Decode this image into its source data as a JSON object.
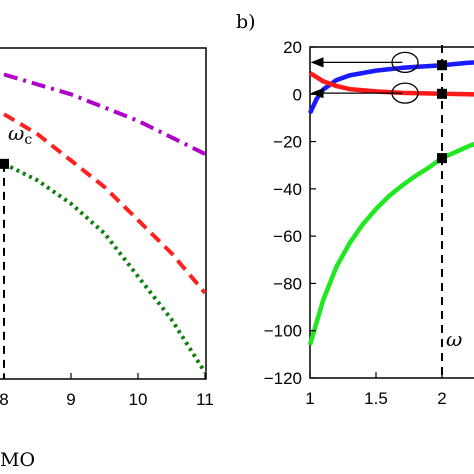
{
  "chart_data": [
    {
      "type": "line",
      "panel_label": "",
      "xlabel": "",
      "xlabel_fragment": "MO",
      "ylabel": "",
      "xlim": [
        8,
        11
      ],
      "x_ticks": [
        8,
        9,
        10,
        11
      ],
      "grid": false,
      "series": [
        {
          "color": "#b000c8",
          "style": "dash-dot",
          "x": [
            8,
            9,
            10,
            11
          ],
          "y": [
            0.92,
            0.86,
            0.78,
            0.68
          ]
        },
        {
          "color": "#ff2020",
          "style": "dashed",
          "x": [
            8,
            8.5,
            9,
            9.5,
            10,
            10.5,
            11
          ],
          "y": [
            0.8,
            0.74,
            0.66,
            0.58,
            0.48,
            0.38,
            0.26
          ]
        },
        {
          "color": "#108010",
          "style": "dotted",
          "x": [
            8,
            8.5,
            9,
            9.5,
            10,
            10.5,
            11
          ],
          "y": [
            0.65,
            0.6,
            0.53,
            0.44,
            0.31,
            0.18,
            0.02
          ]
        }
      ],
      "marker": {
        "x": 8,
        "y": 0.65,
        "label_main": "ω",
        "label_sub": "c"
      }
    },
    {
      "type": "line",
      "panel_label": "b)",
      "xlabel": "",
      "ylabel": "",
      "xlim": [
        1,
        2.4
      ],
      "ylim": [
        -120,
        20
      ],
      "x_ticks": [
        1,
        1.5,
        2
      ],
      "x_tick_labels": [
        "1",
        "1.5",
        "2"
      ],
      "y_ticks": [
        20,
        0,
        -20,
        -40,
        -60,
        -80,
        -100,
        -120
      ],
      "y_tick_labels": [
        "20",
        "0",
        "−20",
        "−40",
        "−60",
        "−80",
        "−100",
        "−120"
      ],
      "grid": false,
      "series": [
        {
          "color": "#1a1aff",
          "x": [
            1,
            1.05,
            1.1,
            1.2,
            1.3,
            1.5,
            1.7,
            2,
            2.2,
            2.4
          ],
          "y": [
            -8,
            -2,
            2,
            6,
            8,
            10,
            11.2,
            12.3,
            13.3,
            14
          ]
        },
        {
          "color": "#ff1a1a",
          "x": [
            1,
            1.1,
            1.2,
            1.3,
            1.5,
            1.7,
            2,
            2.2,
            2.4
          ],
          "y": [
            9,
            5.5,
            3.5,
            2.2,
            1.2,
            0.6,
            0.2,
            0,
            -0.2
          ]
        },
        {
          "color": "#20e820",
          "x": [
            1,
            1.1,
            1.2,
            1.3,
            1.4,
            1.5,
            1.6,
            1.7,
            1.8,
            1.9,
            2,
            2.1,
            2.2,
            2.3,
            2.4
          ],
          "y": [
            -106,
            -87,
            -73,
            -63,
            -55,
            -48.5,
            -43,
            -38.5,
            -34.5,
            -31,
            -27,
            -24.5,
            -22,
            -20,
            -18
          ]
        }
      ],
      "markers": [
        {
          "x": 2,
          "y": 12.3
        },
        {
          "x": 2,
          "y": 0.2
        },
        {
          "x": 2,
          "y": -27
        }
      ],
      "omega_label": "ω",
      "annotations": [
        {
          "type": "arrow",
          "from": [
            1.7,
            13.5
          ],
          "to": [
            1.0,
            13.5
          ]
        },
        {
          "type": "arrow",
          "from": [
            1.7,
            0.5
          ],
          "to": [
            1.0,
            0.5
          ]
        }
      ],
      "ellipses": [
        {
          "cx": 1.72,
          "cy": 13.5
        },
        {
          "cx": 1.72,
          "cy": 0.5
        }
      ]
    }
  ]
}
